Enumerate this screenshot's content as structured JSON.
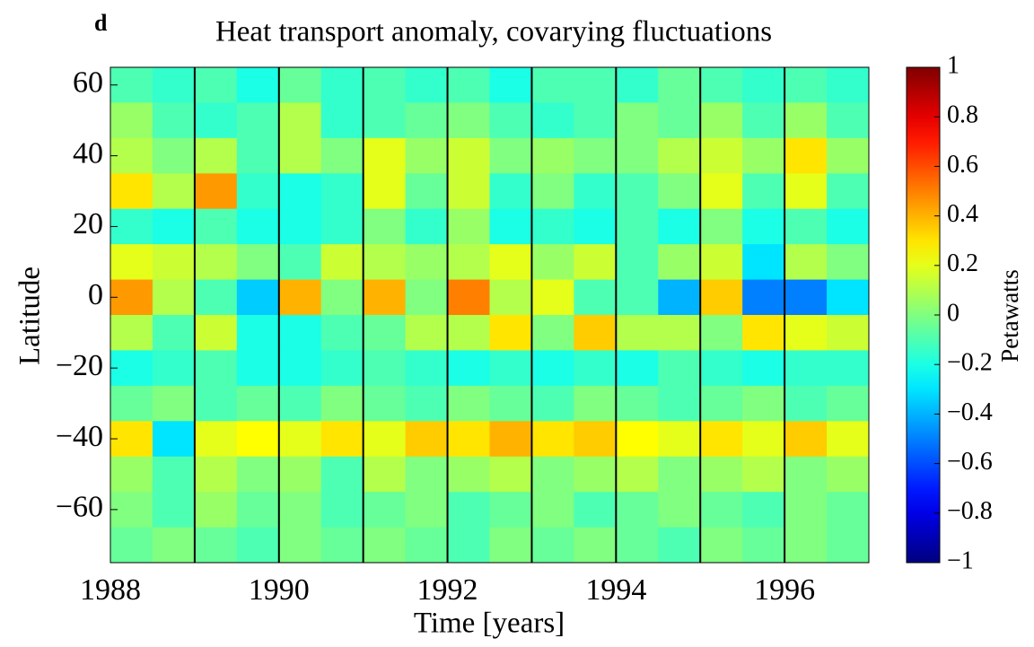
{
  "chart_data": {
    "type": "heatmap",
    "panel_label": "d",
    "title": "Heat transport anomaly, covarying fluctuations",
    "x_label": "Time [years]",
    "y_label": "Latitude",
    "colorbar_label": "Petawatts",
    "colormap": "jet",
    "xlim": [
      1988,
      1997
    ],
    "ylim": [
      -75,
      65
    ],
    "zlim": [
      -1,
      1
    ],
    "xticks": [
      1988,
      1990,
      1992,
      1994,
      1996
    ],
    "yticks": [
      60,
      40,
      20,
      0,
      {
        "value": -20,
        "label": "−20"
      },
      {
        "value": -40,
        "label": "−40"
      },
      {
        "value": -60,
        "label": "−60"
      }
    ],
    "zticks": [
      1,
      0.8,
      0.6,
      0.4,
      0.2,
      0,
      {
        "value": -0.2,
        "label": "−0.2"
      },
      {
        "value": -0.4,
        "label": "−0.4"
      },
      {
        "value": -0.6,
        "label": "−0.6"
      },
      {
        "value": -0.8,
        "label": "−0.8"
      },
      {
        "value": -1,
        "label": "−1"
      }
    ],
    "vlines": [
      1989,
      1990,
      1991,
      1992,
      1993,
      1994,
      1995,
      1996
    ],
    "x": [
      1988.25,
      1988.75,
      1989.25,
      1989.75,
      1990.25,
      1990.75,
      1991.25,
      1991.75,
      1992.25,
      1992.75,
      1993.25,
      1993.75,
      1994.25,
      1994.75,
      1995.25,
      1995.75,
      1996.25,
      1996.75
    ],
    "y": [
      60,
      50,
      40,
      30,
      20,
      10,
      0,
      -10,
      -20,
      -30,
      -40,
      -50,
      -60,
      -70
    ],
    "z": [
      [
        -0.1,
        -0.15,
        -0.1,
        -0.2,
        -0.05,
        -0.15,
        -0.1,
        -0.15,
        -0.1,
        -0.2,
        -0.1,
        -0.1,
        -0.15,
        -0.05,
        -0.1,
        -0.15,
        -0.1,
        -0.15
      ],
      [
        0.05,
        -0.1,
        -0.15,
        -0.1,
        0.1,
        -0.15,
        -0.1,
        -0.05,
        0.0,
        -0.1,
        -0.15,
        -0.1,
        0.0,
        -0.05,
        0.05,
        -0.1,
        0.05,
        -0.1
      ],
      [
        0.1,
        0.0,
        0.1,
        -0.1,
        0.1,
        0.0,
        0.2,
        0.05,
        0.15,
        0.0,
        0.05,
        0.0,
        0.0,
        0.1,
        0.15,
        0.05,
        0.3,
        0.05
      ],
      [
        0.3,
        0.1,
        0.45,
        -0.15,
        -0.2,
        -0.15,
        0.2,
        -0.05,
        0.15,
        -0.15,
        0.0,
        -0.15,
        -0.1,
        0.0,
        0.2,
        -0.1,
        0.2,
        -0.1
      ],
      [
        -0.15,
        -0.2,
        -0.1,
        -0.2,
        -0.2,
        -0.15,
        0.0,
        -0.15,
        0.05,
        -0.2,
        -0.15,
        -0.2,
        -0.1,
        -0.2,
        0.0,
        -0.2,
        -0.1,
        -0.2
      ],
      [
        0.2,
        0.15,
        0.1,
        0.0,
        -0.1,
        0.15,
        0.1,
        0.05,
        0.1,
        0.2,
        0.05,
        0.15,
        -0.1,
        0.05,
        0.15,
        -0.3,
        0.1,
        0.0
      ],
      [
        0.45,
        0.1,
        -0.1,
        -0.35,
        0.4,
        0.0,
        0.4,
        0.0,
        0.5,
        0.1,
        0.2,
        -0.1,
        -0.1,
        -0.4,
        0.35,
        -0.5,
        -0.5,
        -0.3
      ],
      [
        0.1,
        -0.1,
        0.15,
        -0.2,
        -0.2,
        -0.1,
        -0.05,
        0.1,
        0.1,
        0.3,
        0.0,
        0.35,
        0.1,
        0.1,
        0.0,
        0.3,
        0.2,
        0.15
      ],
      [
        -0.2,
        -0.15,
        -0.1,
        -0.2,
        -0.2,
        -0.15,
        -0.1,
        -0.15,
        -0.2,
        -0.15,
        -0.2,
        -0.15,
        -0.2,
        -0.1,
        -0.15,
        -0.2,
        -0.15,
        -0.15
      ],
      [
        -0.05,
        0.0,
        -0.1,
        -0.05,
        -0.1,
        0.0,
        -0.05,
        -0.1,
        0.0,
        -0.05,
        -0.1,
        0.0,
        -0.05,
        -0.1,
        -0.05,
        0.0,
        -0.1,
        -0.05
      ],
      [
        0.3,
        -0.3,
        0.2,
        0.25,
        0.2,
        0.3,
        0.2,
        0.35,
        0.3,
        0.4,
        0.3,
        0.35,
        0.25,
        0.2,
        0.3,
        0.2,
        0.35,
        0.2
      ],
      [
        0.05,
        -0.1,
        0.1,
        0.0,
        0.05,
        -0.1,
        0.1,
        0.0,
        0.05,
        0.1,
        0.0,
        0.05,
        0.1,
        0.0,
        0.05,
        0.1,
        0.0,
        0.05
      ],
      [
        0.0,
        -0.1,
        0.05,
        -0.05,
        0.0,
        -0.1,
        -0.05,
        0.0,
        -0.1,
        -0.05,
        0.0,
        -0.1,
        -0.05,
        0.0,
        -0.05,
        -0.1,
        0.0,
        -0.05
      ],
      [
        -0.05,
        0.0,
        -0.05,
        -0.1,
        0.0,
        -0.05,
        0.0,
        -0.05,
        -0.1,
        0.0,
        -0.05,
        0.0,
        -0.05,
        -0.1,
        0.0,
        -0.05,
        0.0,
        -0.05
      ]
    ]
  }
}
